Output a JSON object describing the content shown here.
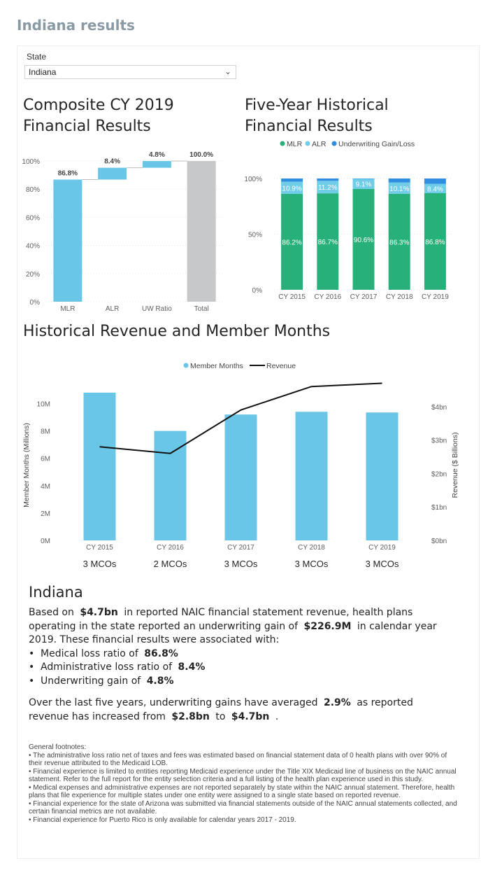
{
  "page": {
    "title": "Indiana results"
  },
  "filter": {
    "label": "State",
    "value": "Indiana"
  },
  "colors": {
    "alr_bar": "#6ac6e6",
    "total_bar": "#c7c8c9",
    "mlr_green": "#27b07a",
    "alr_light": "#6fcde8",
    "uw_blue": "#2f8ee0",
    "member_bar": "#6ac6e6",
    "revenue_line": "#111111"
  },
  "chart_data": [
    {
      "type": "bar",
      "subtype": "waterfall",
      "title": "Composite CY 2019 Financial Results",
      "categories": [
        "MLR",
        "ALR",
        "UW Ratio",
        "Total"
      ],
      "values": [
        86.8,
        8.4,
        4.8,
        100.0
      ],
      "data_labels": [
        "86.8%",
        "8.4%",
        "4.8%",
        "100.0%"
      ],
      "y_ticks": [
        "0%",
        "20%",
        "40%",
        "60%",
        "80%",
        "100%"
      ],
      "ylim": [
        0,
        100
      ],
      "grid": true
    },
    {
      "type": "bar",
      "subtype": "stacked-100",
      "title": "Five-Year Historical Financial Results",
      "categories": [
        "CY 2015",
        "CY 2016",
        "CY 2017",
        "CY 2018",
        "CY 2019"
      ],
      "legend": [
        "MLR",
        "ALR",
        "Underwriting Gain/Loss"
      ],
      "legend_position": "top",
      "series": [
        {
          "name": "MLR",
          "values": [
            86.2,
            86.7,
            90.6,
            86.3,
            86.8
          ],
          "labels": [
            "86.2%",
            "86.7%",
            "90.6%",
            "86.3%",
            "86.8%"
          ]
        },
        {
          "name": "ALR",
          "values": [
            10.9,
            11.2,
            9.1,
            10.1,
            8.4
          ],
          "labels": [
            "10.9%",
            "11.2%",
            "9.1%",
            "10.1%",
            "8.4%"
          ]
        },
        {
          "name": "Underwriting Gain/Loss",
          "values": [
            2.9,
            2.1,
            0.3,
            3.6,
            4.8
          ]
        }
      ],
      "y_ticks": [
        "0%",
        "50%",
        "100%"
      ],
      "ylim": [
        0,
        100
      ],
      "grid": true
    },
    {
      "type": "bar",
      "subtype": "combo bar + line",
      "title": "Historical Revenue and Member Months",
      "categories": [
        "CY 2015",
        "CY 2016",
        "CY 2017",
        "CY 2018",
        "CY 2019"
      ],
      "legend": [
        "Member Months",
        "Revenue"
      ],
      "legend_position": "top",
      "series": [
        {
          "name": "Member Months",
          "axis": "left",
          "values": [
            10.8,
            8.0,
            9.2,
            9.4,
            9.35
          ]
        },
        {
          "name": "Revenue",
          "axis": "right",
          "values": [
            2.8,
            2.6,
            3.9,
            4.6,
            4.7
          ]
        }
      ],
      "ylabel": "Member Months (Millions)",
      "ylabel_right": "Revenue ($ Billions)",
      "y_ticks": [
        "0M",
        "2M",
        "4M",
        "6M",
        "8M",
        "10M"
      ],
      "y_right_ticks": [
        "$0bn",
        "$1bn",
        "$2bn",
        "$3bn",
        "$4bn"
      ],
      "ylim": [
        0,
        11
      ],
      "ylim_right": [
        0,
        4.5
      ],
      "mco_labels": [
        "3  MCOs",
        "2  MCOs",
        "3  MCOs",
        "3  MCOs",
        "3  MCOs"
      ]
    }
  ],
  "summary": {
    "state": "Indiana",
    "p1": {
      "t1": "Based on",
      "revenue": "$4.7bn",
      "t2": "in reported NAIC financial statement revenue, health plans operating in the state  reported an underwriting  gain  of",
      "uw_amount": "$226.9M",
      "t3": "in calendar year 2019. These financial results were associated with:"
    },
    "bullets": [
      {
        "label": "Medical loss ratio of",
        "value": "86.8%"
      },
      {
        "label": "Administrative loss ratio of",
        "value": "8.4%"
      },
      {
        "label": "Underwriting  gain  of",
        "value": "4.8%"
      }
    ],
    "p2": {
      "t1": "Over the last five years, underwriting  gains  have averaged",
      "avg": "2.9%",
      "t2": "as reported revenue has increased from",
      "from": "$2.8bn",
      "t3": "to",
      "to": "$4.7bn",
      "t4": "."
    }
  },
  "footnotes": {
    "header": "General footnotes:",
    "items": [
      "•  The administrative loss ratio net of taxes and fees was estimated based on financial statement data of  0  health plans with over 90% of their revenue attributed to the Medicaid LOB.",
      "•  Financial experience is limited to entities reporting Medicaid experience under the Title XIX Medicaid line of business on the NAIC annual statement. Refer to the full report for the entity selection criteria and a full listing of the health plan experience used in this study.",
      "•  Medical expenses and administrative expenses are not reported separately by state within the NAIC annual statement. Therefore, health plans that file experience for multiple states under one entity were assigned to a single state based on reported revenue.",
      "•  Financial experience for the state of Arizona was submitted via financial statements outside of the NAIC annual statements collected, and certain financial metrics are not available.",
      "•  Financial experience for Puerto Rico is only available for calendar years 2017 - 2019."
    ]
  }
}
